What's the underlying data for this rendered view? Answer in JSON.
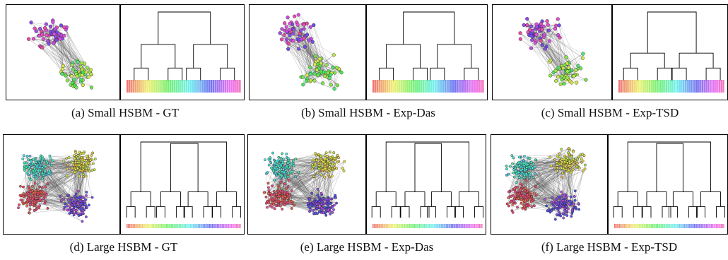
{
  "panels": [
    {
      "id": "a",
      "caption": "(a)  Small HSBM - GT",
      "size": "small",
      "clusters": 2,
      "dendro": "gt2"
    },
    {
      "id": "b",
      "caption": "(b)  Small HSBM - Exp-Das",
      "size": "small",
      "clusters": 2,
      "dendro": "das2"
    },
    {
      "id": "c",
      "caption": "(c)  Small HSBM - Exp-TSD",
      "size": "small",
      "clusters": 2,
      "dendro": "tsd2"
    },
    {
      "id": "d",
      "caption": "(d)  Large HSBM - GT",
      "size": "large",
      "clusters": 4,
      "dendro": "gt4"
    },
    {
      "id": "e",
      "caption": "(e)  Large HSBM - Exp-Das",
      "size": "large",
      "clusters": 4,
      "dendro": "das4"
    },
    {
      "id": "f",
      "caption": "(f)  Large HSBM - Exp-TSD",
      "size": "large",
      "clusters": 4,
      "dendro": "tsd4"
    }
  ]
}
